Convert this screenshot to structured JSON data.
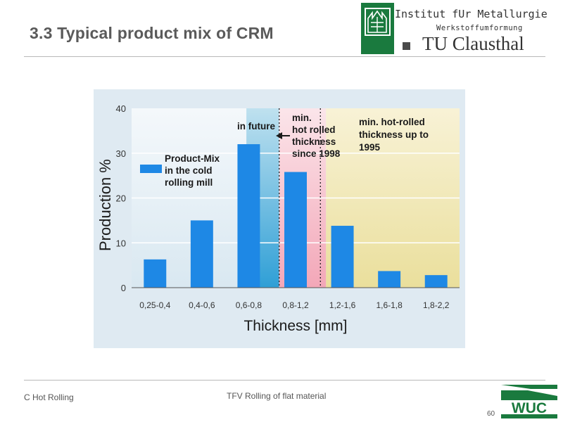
{
  "slide": {
    "title": "3.3  Typical product mix of CRM",
    "institute": "Institut fUr Metallurgie",
    "institute_sub": "Werkstoffumformung",
    "university": "TU Clausthal",
    "footer_left": "C Hot Rolling",
    "footer_center": "TFV Rolling of flat material",
    "page_number": "60",
    "wuc_logo": "WUC"
  },
  "chart_data": {
    "type": "bar",
    "title": "",
    "xlabel": "Thickness [mm]",
    "ylabel": "Production %",
    "ylim": [
      0,
      40
    ],
    "yticks": [
      "0",
      "10",
      "20",
      "30",
      "40"
    ],
    "categories": [
      "0,25-0,4",
      "0,4-0,6",
      "0,6-0,8",
      "0,8-1,2",
      "1,2-1,6",
      "1,6-1,8",
      "1,8-2,2"
    ],
    "series": [
      {
        "name": "Product-Mix in the cold rolling mill",
        "values": [
          6.3,
          15,
          32,
          25.8,
          13.8,
          3.7,
          2.8
        ]
      }
    ],
    "legend": {
      "line1": "Product-Mix",
      "line2": "in the cold",
      "line3": "rolling mill"
    },
    "annotations": {
      "future": "in future",
      "since1998": [
        "min.",
        "hot rolled",
        "thickness",
        "since 1998"
      ],
      "upto1995": [
        "min. hot-rolled",
        "thickness up to",
        "1995"
      ]
    },
    "colors": {
      "bar": "#1e88e5",
      "future_band": "#5fb8df",
      "since1998_band": "#f5b8c6",
      "upto1995_band": "#efe4a6",
      "plot_bg": "#e1edf4"
    }
  }
}
